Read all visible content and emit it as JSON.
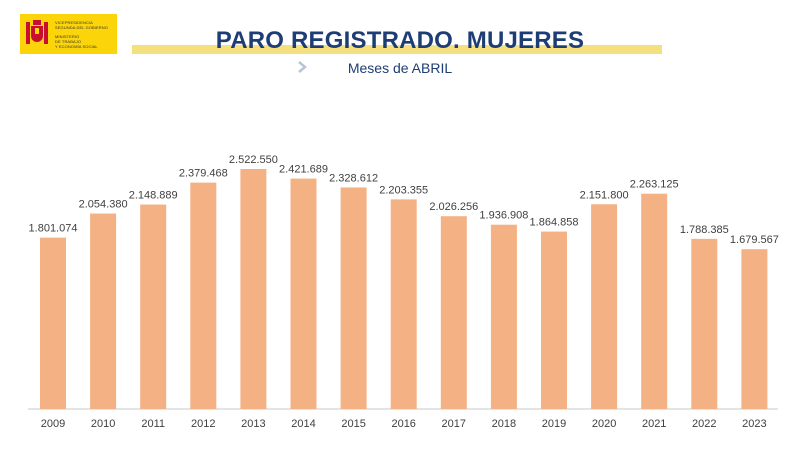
{
  "logo": {
    "lines": [
      "VICEPRESIDENCIA",
      "SEGUNDA DEL GOBIERNO",
      "MINISTERIO",
      "DE TRABAJO",
      "Y ECONOMÍA SOCIAL"
    ]
  },
  "header": {
    "title": "PARO REGISTRADO. MUJERES",
    "subtitle": "Meses de ABRIL"
  },
  "colors": {
    "bar": "#f4b183",
    "title": "#1d3d74",
    "accent_bar": "#f5e080",
    "logo_bg": "#fbd40a",
    "text": "#404040",
    "axis": "#c8c8c8"
  },
  "chart_data": {
    "type": "bar",
    "categories": [
      "2009",
      "2010",
      "2011",
      "2012",
      "2013",
      "2014",
      "2015",
      "2016",
      "2017",
      "2018",
      "2019",
      "2020",
      "2021",
      "2022",
      "2023"
    ],
    "values": [
      1801074,
      2054380,
      2148889,
      2379468,
      2522550,
      2421689,
      2328612,
      2203355,
      2026256,
      1936908,
      1864858,
      2151800,
      2263125,
      1788385,
      1679567
    ],
    "data_labels": [
      "1.801.074",
      "2.054.380",
      "2.148.889",
      "2.379.468",
      "2.522.550",
      "2.421.689",
      "2.328.612",
      "2.203.355",
      "2.026.256",
      "1.936.908",
      "1.864.858",
      "2.151.800",
      "2.263.125",
      "1.788.385",
      "1.679.567"
    ],
    "title": "PARO REGISTRADO. MUJERES",
    "subtitle": "Meses de ABRIL",
    "xlabel": "",
    "ylabel": "",
    "ylim": [
      0,
      2700000
    ],
    "grid": false,
    "legend": "none"
  }
}
